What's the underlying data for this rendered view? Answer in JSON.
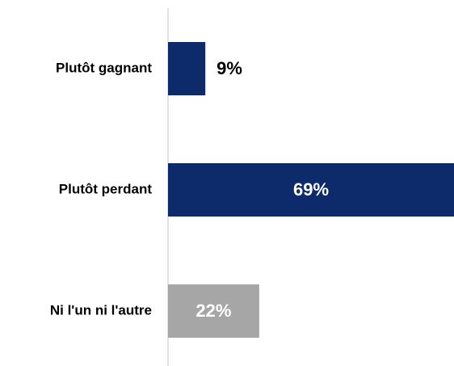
{
  "chart_data": {
    "type": "barh",
    "categories": [
      "Plutôt gagnant",
      "Plutôt perdant",
      "Ni l'un ni l'autre"
    ],
    "values": [
      9,
      69,
      22
    ],
    "value_labels": [
      "9%",
      "69%",
      "22%"
    ],
    "colors": [
      "#0d2a6b",
      "#0d2a6b",
      "#a6a6a6"
    ]
  }
}
